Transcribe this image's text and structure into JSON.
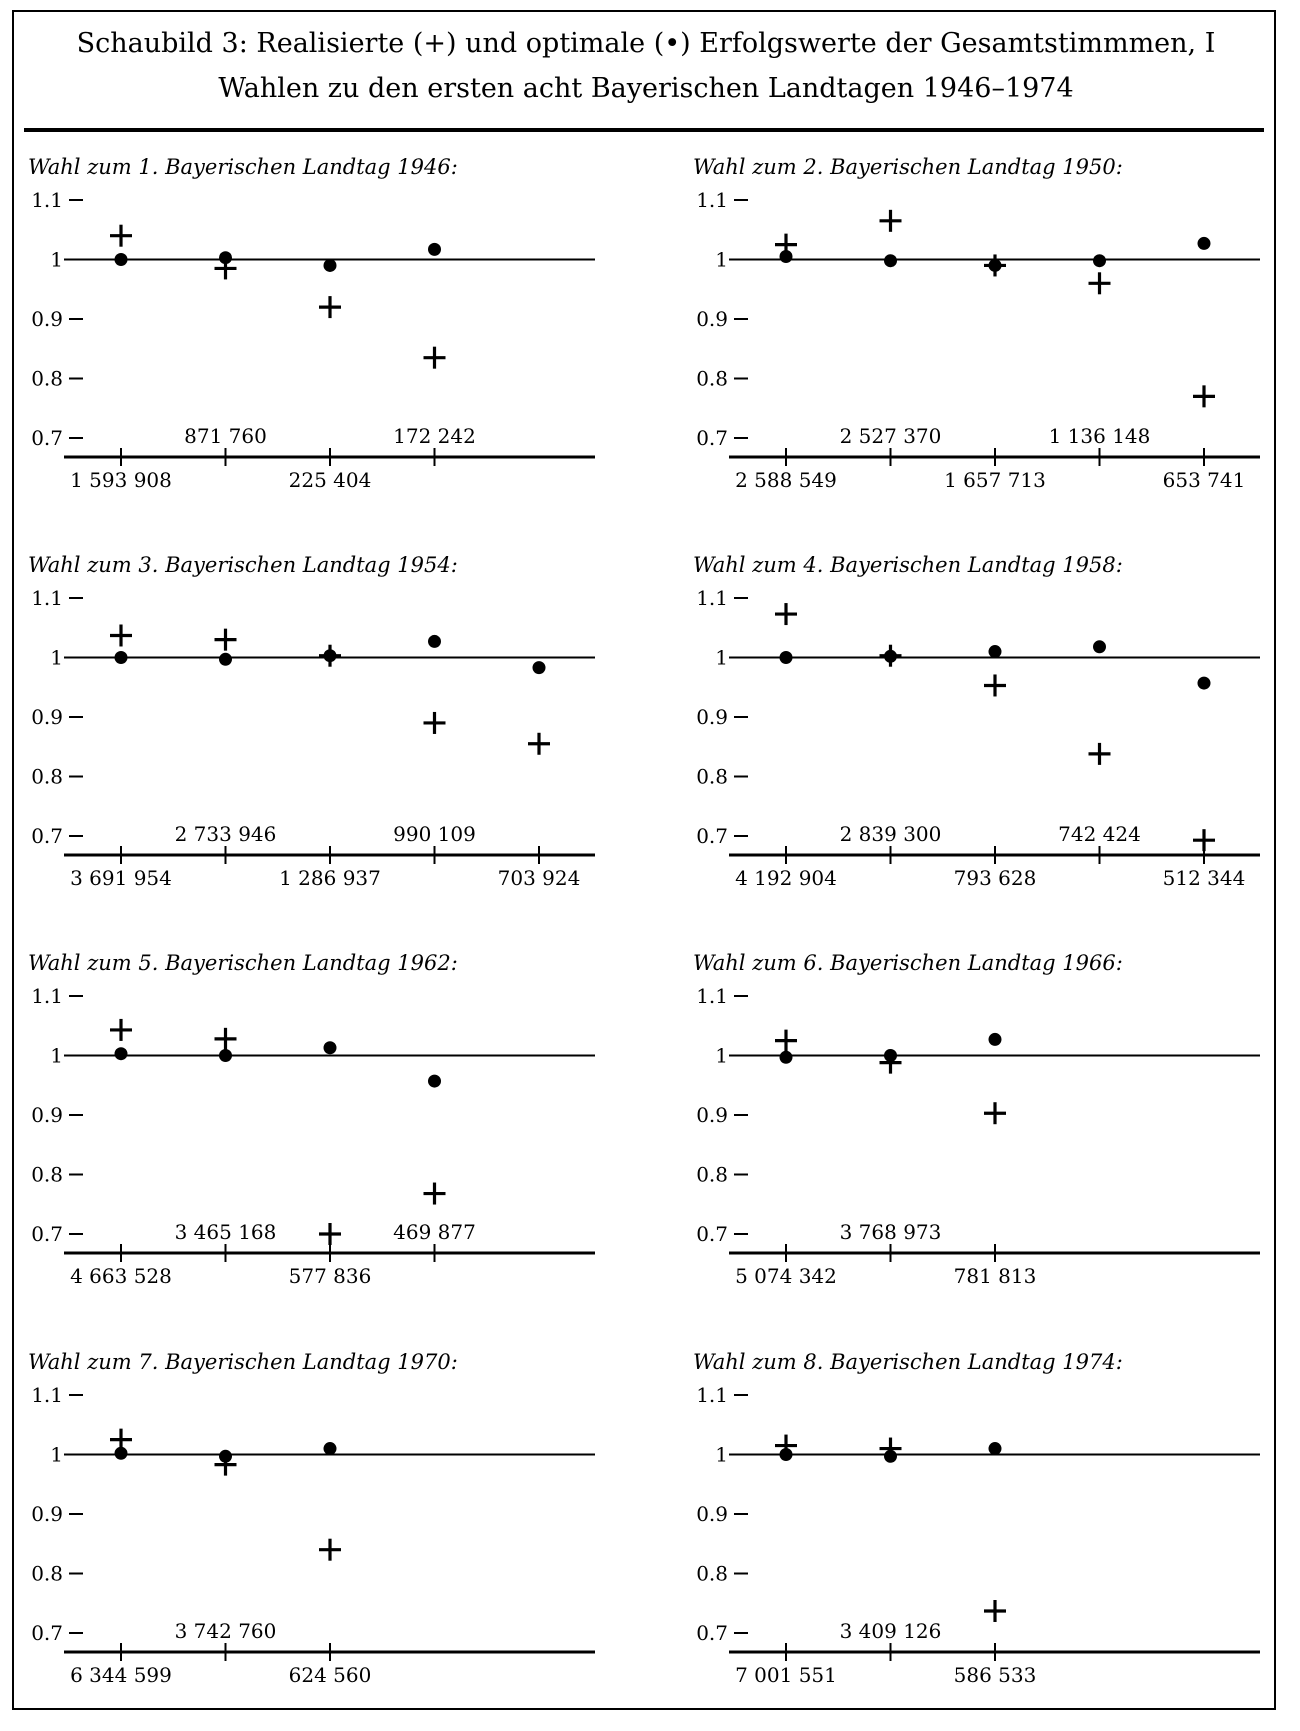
{
  "figure": {
    "title_line1": "Schaubild 3: Realisierte (+) und optimale (•) Erfolgswerte der Gesamtstimmmen, I",
    "title_line2": "Wahlen zu den ersten acht Bayerischen Landtagen 1946–1974"
  },
  "chart_data": [
    {
      "type": "scatter",
      "title": "Wahl zum 1. Bayerischen Landtag 1946:",
      "ylim": [
        0.7,
        1.1
      ],
      "yticks": [
        "1.1",
        "1",
        "0.9",
        "0.8",
        "0.7"
      ],
      "reference_line": 1,
      "categories": [
        "1 593 908",
        "871 760",
        "225 404",
        "172 242"
      ],
      "series": [
        {
          "name": "Realisierte Erfolgswerte",
          "marker": "+",
          "values": [
            1.04,
            0.985,
            0.92,
            0.835
          ]
        },
        {
          "name": "Optimale Erfolgswerte",
          "marker": "•",
          "values": [
            1.0,
            1.003,
            0.99,
            1.017
          ]
        }
      ]
    },
    {
      "type": "scatter",
      "title": "Wahl zum 2. Bayerischen Landtag 1950:",
      "ylim": [
        0.7,
        1.1
      ],
      "yticks": [
        "1.1",
        "1",
        "0.9",
        "0.8",
        "0.7"
      ],
      "reference_line": 1,
      "categories": [
        "2 588 549",
        "2 527 370",
        "1 657 713",
        "1 136 148",
        "653 741"
      ],
      "series": [
        {
          "name": "Realisierte Erfolgswerte",
          "marker": "+",
          "values": [
            1.025,
            1.065,
            0.99,
            0.96,
            0.77
          ]
        },
        {
          "name": "Optimale Erfolgswerte",
          "marker": "•",
          "values": [
            1.005,
            0.998,
            0.99,
            0.998,
            1.027
          ]
        }
      ]
    },
    {
      "type": "scatter",
      "title": "Wahl zum 3. Bayerischen Landtag 1954:",
      "ylim": [
        0.7,
        1.1
      ],
      "yticks": [
        "1.1",
        "1",
        "0.9",
        "0.8",
        "0.7"
      ],
      "reference_line": 1,
      "categories": [
        "3 691 954",
        "2 733 946",
        "1 286 937",
        "990 109",
        "703 924"
      ],
      "series": [
        {
          "name": "Realisierte Erfolgswerte",
          "marker": "+",
          "values": [
            1.037,
            1.03,
            1.003,
            0.89,
            0.855
          ]
        },
        {
          "name": "Optimale Erfolgswerte",
          "marker": "•",
          "values": [
            1.0,
            0.997,
            1.003,
            1.027,
            0.983
          ]
        }
      ]
    },
    {
      "type": "scatter",
      "title": "Wahl zum 4. Bayerischen Landtag 1958:",
      "ylim": [
        0.7,
        1.1
      ],
      "yticks": [
        "1.1",
        "1",
        "0.9",
        "0.8",
        "0.7"
      ],
      "reference_line": 1,
      "categories": [
        "4 192 904",
        "2 839 300",
        "793 628",
        "742 424",
        "512 344"
      ],
      "series": [
        {
          "name": "Realisierte Erfolgswerte",
          "marker": "+",
          "values": [
            1.073,
            1.003,
            0.953,
            0.838,
            0.693
          ]
        },
        {
          "name": "Optimale Erfolgswerte",
          "marker": "•",
          "values": [
            1.0,
            1.002,
            1.01,
            1.018,
            0.957
          ]
        }
      ]
    },
    {
      "type": "scatter",
      "title": "Wahl zum 5. Bayerischen Landtag 1962:",
      "ylim": [
        0.7,
        1.1
      ],
      "yticks": [
        "1.1",
        "1",
        "0.9",
        "0.8",
        "0.7"
      ],
      "reference_line": 1,
      "categories": [
        "4 663 528",
        "3 465 168",
        "577 836",
        "469 877"
      ],
      "series": [
        {
          "name": "Realisierte Erfolgswerte",
          "marker": "+",
          "values": [
            1.043,
            1.028,
            0.7,
            0.768
          ]
        },
        {
          "name": "Optimale Erfolgswerte",
          "marker": "•",
          "values": [
            1.003,
            1.0,
            1.013,
            0.957
          ]
        }
      ]
    },
    {
      "type": "scatter",
      "title": "Wahl zum 6. Bayerischen Landtag 1966:",
      "ylim": [
        0.7,
        1.1
      ],
      "yticks": [
        "1.1",
        "1",
        "0.9",
        "0.8",
        "0.7"
      ],
      "reference_line": 1,
      "categories": [
        "5 074 342",
        "3 768 973",
        "781 813"
      ],
      "series": [
        {
          "name": "Realisierte Erfolgswerte",
          "marker": "+",
          "values": [
            1.025,
            0.988,
            0.903
          ]
        },
        {
          "name": "Optimale Erfolgswerte",
          "marker": "•",
          "values": [
            0.997,
            1.0,
            1.027
          ]
        }
      ]
    },
    {
      "type": "scatter",
      "title": "Wahl zum 7. Bayerischen Landtag 1970:",
      "ylim": [
        0.7,
        1.1
      ],
      "yticks": [
        "1.1",
        "1",
        "0.9",
        "0.8",
        "0.7"
      ],
      "reference_line": 1,
      "categories": [
        "6 344 599",
        "3 742 760",
        "624 560"
      ],
      "series": [
        {
          "name": "Realisierte Erfolgswerte",
          "marker": "+",
          "values": [
            1.025,
            0.983,
            0.84
          ]
        },
        {
          "name": "Optimale Erfolgswerte",
          "marker": "•",
          "values": [
            1.002,
            0.997,
            1.01
          ]
        }
      ]
    },
    {
      "type": "scatter",
      "title": "Wahl zum 8. Bayerischen Landtag 1974:",
      "ylim": [
        0.7,
        1.1
      ],
      "yticks": [
        "1.1",
        "1",
        "0.9",
        "0.8",
        "0.7"
      ],
      "reference_line": 1,
      "categories": [
        "7 001 551",
        "3 409 126",
        "586 533"
      ],
      "series": [
        {
          "name": "Realisierte Erfolgswerte",
          "marker": "+",
          "values": [
            1.015,
            1.01,
            0.737
          ]
        },
        {
          "name": "Optimale Erfolgswerte",
          "marker": "•",
          "values": [
            1.0,
            0.997,
            1.01
          ]
        }
      ]
    }
  ]
}
